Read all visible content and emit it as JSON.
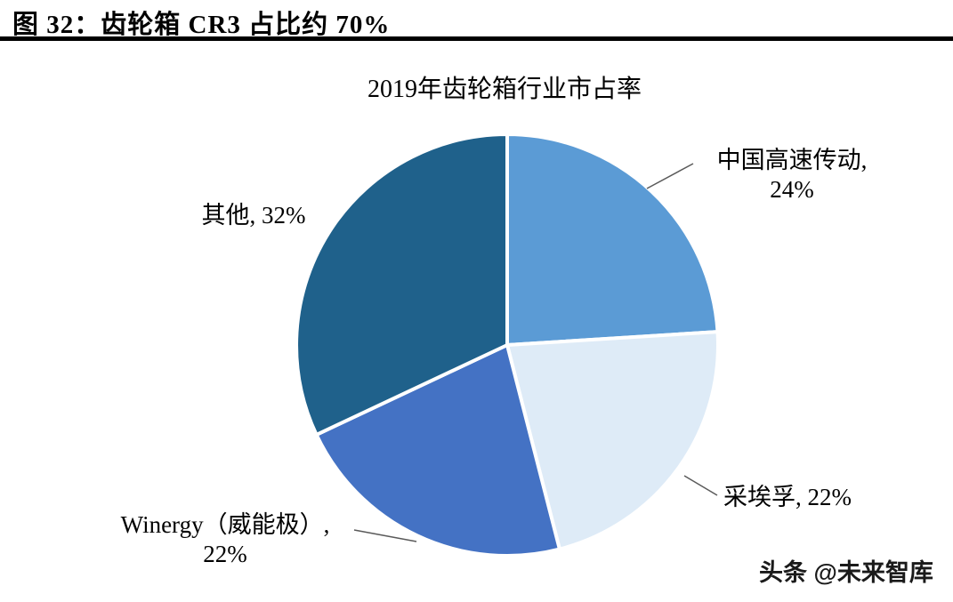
{
  "figure": {
    "header": "图 32：齿轮箱 CR3 占比约 70%",
    "watermark": "头条 @未来智库"
  },
  "chart_data": {
    "type": "pie",
    "title": "2019年齿轮箱行业市占率",
    "categories": [
      "中国高速传动",
      "采埃孚",
      "Winergy（威能极）",
      "其他"
    ],
    "values": [
      24,
      22,
      22,
      32
    ],
    "unit": "%",
    "colors": [
      "#5B9BD5",
      "#DEEBF7",
      "#4472C4",
      "#1F618B"
    ],
    "start_angle": "top",
    "direction": "clockwise",
    "legend": "none",
    "slice_border_color": "#FFFFFF",
    "labels": {
      "china_hst_line1": "中国高速传动,",
      "china_hst_line2": "24%",
      "zf": "采埃孚, 22%",
      "winergy_line1": "Winergy（威能极）,",
      "winergy_line2": "22%",
      "others": "其他, 32%"
    }
  }
}
